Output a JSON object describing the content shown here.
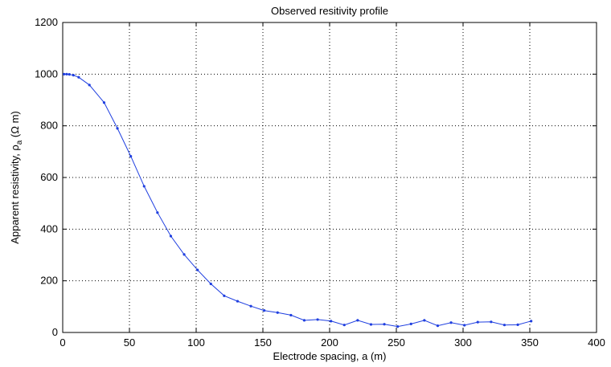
{
  "chart_data": {
    "type": "line",
    "title": "Observed resitivity profile",
    "xlabel": "Electrode spacing, a (m)",
    "ylabel_main": "Apparent resistivity, ρ",
    "ylabel_sub": "a",
    "ylabel_unit": " (Ω m)",
    "xlim": [
      0,
      400
    ],
    "ylim": [
      0,
      1200
    ],
    "xticks": [
      0,
      50,
      100,
      150,
      200,
      250,
      300,
      350,
      400
    ],
    "yticks": [
      0,
      200,
      400,
      600,
      800,
      1000,
      1200
    ],
    "grid": true,
    "line_color": "#1f3fe0",
    "series": [
      {
        "x": [
          1,
          3,
          5,
          8,
          12,
          20,
          31,
          41,
          51,
          61,
          71,
          81,
          91,
          101,
          111,
          121,
          131,
          141,
          151,
          161,
          171,
          181,
          191,
          201,
          211,
          221,
          231,
          241,
          251,
          261,
          271,
          281,
          291,
          301,
          311,
          321,
          331,
          341,
          351
        ],
        "y": [
          1000,
          1000,
          999,
          996,
          988,
          958,
          890,
          790,
          682,
          566,
          464,
          373,
          302,
          242,
          188,
          142,
          121,
          102,
          85,
          77,
          67,
          47,
          50,
          44,
          29,
          47,
          31,
          32,
          23,
          33,
          47,
          26,
          38,
          28,
          40,
          41,
          29,
          30,
          44
        ]
      }
    ]
  }
}
